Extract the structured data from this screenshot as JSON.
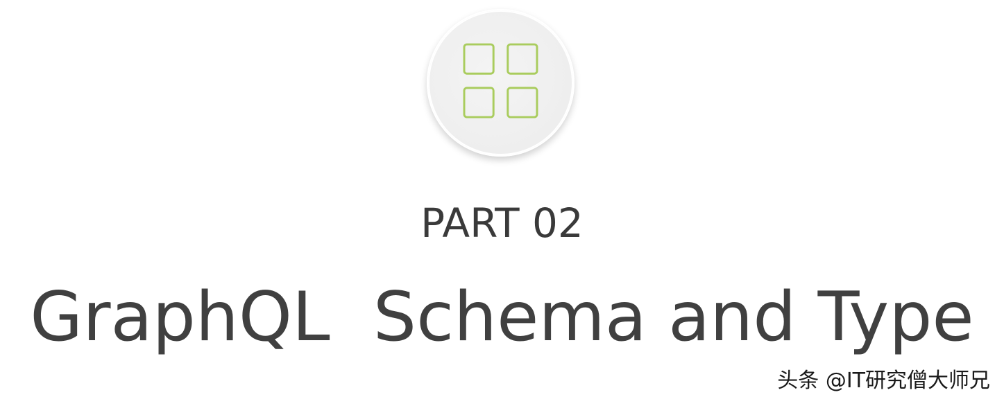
{
  "slide": {
    "icon": "grid-four-squares-icon",
    "accent_color": "#a9cc5d",
    "circle_color": "#eeeeee",
    "part_label": "PART 02",
    "title": "GraphQL  Schema and Type"
  },
  "watermark": {
    "text": "头条 @IT研究僧大师兄"
  }
}
